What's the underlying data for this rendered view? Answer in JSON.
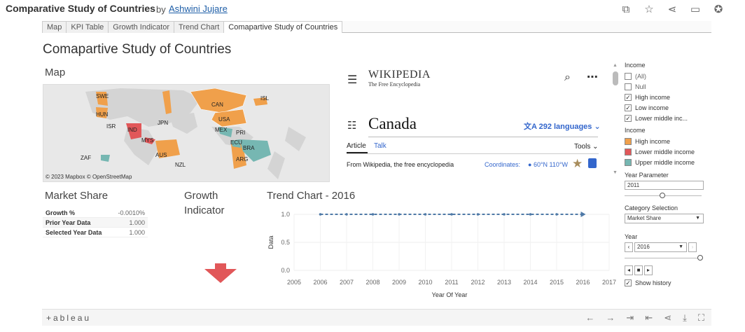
{
  "header": {
    "title": "Comparative Study of Countries",
    "by": "by",
    "author": "Ashwini Jujare",
    "icons": [
      "copy-icon",
      "star-icon",
      "share-icon",
      "comment-icon",
      "badge-icon"
    ]
  },
  "tabs": [
    {
      "label": "Map"
    },
    {
      "label": "KPI Table"
    },
    {
      "label": "Growth Indicator"
    },
    {
      "label": "Trend Chart"
    },
    {
      "label": "Comapartive Study of Countries",
      "active": true
    }
  ],
  "dashboard": {
    "title": "Comapartive Study of Countries"
  },
  "map": {
    "label": "Map",
    "credit": "© 2023 Mapbox  © OpenStreetMap",
    "countries": [
      "SWE",
      "HUN",
      "ISR",
      "IND",
      "MYS",
      "JPN",
      "CAN",
      "USA",
      "MEX",
      "PRI",
      "ISL",
      "ECU",
      "BRA",
      "ARG",
      "AUS",
      "NZL",
      "ZAF"
    ]
  },
  "wiki": {
    "logo": "WIKIPEDIA",
    "tagline": "The Free Encyclopedia",
    "heading": "Canada",
    "languages": "292 languages",
    "tab_article": "Article",
    "tab_talk": "Talk",
    "tools": "Tools",
    "from": "From Wikipedia, the free encyclopedia",
    "coordinates_label": "Coordinates:",
    "coordinates_value": "60°N 110°W"
  },
  "market_share": {
    "label": "Market Share",
    "rows": [
      {
        "key": "Growth %",
        "value": "-0.0010%"
      },
      {
        "key": "Prior Year Data",
        "value": "1.000"
      },
      {
        "key": "Selected Year Data",
        "value": "1.000"
      }
    ]
  },
  "growth": {
    "label_line1": "Growth",
    "label_line2": "Indicator"
  },
  "chart_data": {
    "type": "line",
    "title": "Trend Chart - 2016",
    "xlabel": "Year Of Year",
    "ylabel": "Data",
    "x": [
      2006,
      2007,
      2008,
      2009,
      2010,
      2011,
      2012,
      2013,
      2014,
      2015,
      2016
    ],
    "x_ticks": [
      "2005",
      "2006",
      "2007",
      "2008",
      "2009",
      "2010",
      "2011",
      "2012",
      "2013",
      "2014",
      "2015",
      "2016",
      "2017"
    ],
    "y_ticks": [
      "0.0",
      "0.5",
      "1.0"
    ],
    "series": [
      {
        "values": [
          1,
          1,
          1,
          1,
          1,
          1,
          1,
          1,
          1,
          1,
          1
        ],
        "color": "#4e79a7"
      }
    ],
    "xlim": [
      2005,
      2017
    ],
    "ylim": [
      0,
      1
    ],
    "grid": true
  },
  "filters": {
    "income_title": "Income",
    "income_options": [
      {
        "label": "(All)",
        "checked": false
      },
      {
        "label": "Null",
        "checked": false
      },
      {
        "label": "High income",
        "checked": true
      },
      {
        "label": "Low income",
        "checked": true
      },
      {
        "label": "Lower middle inc...",
        "checked": true
      }
    ],
    "legend_title": "Income",
    "legend": [
      {
        "label": "High income",
        "color": "#f0a04b"
      },
      {
        "label": "Lower middle income",
        "color": "#e15759"
      },
      {
        "label": "Upper middle income",
        "color": "#76b7b2"
      }
    ],
    "year_param_title": "Year Parameter",
    "year_param_value": "2011",
    "category_title": "Category Selection",
    "category_value": "Market Share",
    "year_title": "Year",
    "year_value": "2016",
    "show_history": "Show history"
  },
  "footer": {
    "brand": "+ableau"
  }
}
